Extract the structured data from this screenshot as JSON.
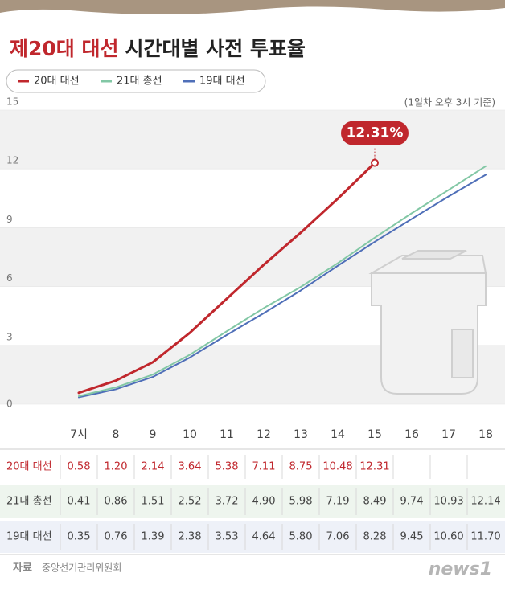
{
  "chart_data": {
    "type": "line",
    "title_highlight": "제20대 대선",
    "title": "시간대별 사전 투표율",
    "note": "(1일차 오후 3시 기준)",
    "annotation": "12.31%",
    "categories": [
      "7시",
      "8",
      "9",
      "10",
      "11",
      "12",
      "13",
      "14",
      "15",
      "16",
      "17",
      "18"
    ],
    "ylim": [
      0,
      15
    ],
    "yticks": [
      0,
      3,
      6,
      9,
      12,
      15
    ],
    "series": [
      {
        "name": "20대 대선",
        "color": "#c0272d",
        "values": [
          0.58,
          1.2,
          2.14,
          3.64,
          5.38,
          7.11,
          8.75,
          10.48,
          12.31,
          null,
          null,
          null
        ],
        "value_labels": [
          "0.58",
          "1.20",
          "2.14",
          "3.64",
          "5.38",
          "7.11",
          "8.75",
          "10.48",
          "12.31",
          null,
          null,
          null
        ]
      },
      {
        "name": "21대 총선",
        "color": "#82c7a5",
        "values": [
          0.41,
          0.86,
          1.51,
          2.52,
          3.72,
          4.9,
          5.98,
          7.19,
          8.49,
          9.74,
          10.93,
          12.14
        ],
        "value_labels": [
          "0.41",
          "0.86",
          "1.51",
          "2.52",
          "3.72",
          "4.90",
          "5.98",
          "7.19",
          "8.49",
          "9.74",
          "10.93",
          "12.14"
        ]
      },
      {
        "name": "19대 대선",
        "color": "#4f6fb8",
        "values": [
          0.35,
          0.76,
          1.39,
          2.38,
          3.53,
          4.64,
          5.8,
          7.06,
          8.28,
          9.45,
          10.6,
          11.7
        ],
        "value_labels": [
          "0.35",
          "0.76",
          "1.39",
          "2.38",
          "3.53",
          "4.64",
          "5.80",
          "7.06",
          "8.28",
          "9.45",
          "10.60",
          "11.70"
        ]
      }
    ],
    "source_label": "자료",
    "source": "중앙선거관리위원회",
    "logo": "news1"
  }
}
